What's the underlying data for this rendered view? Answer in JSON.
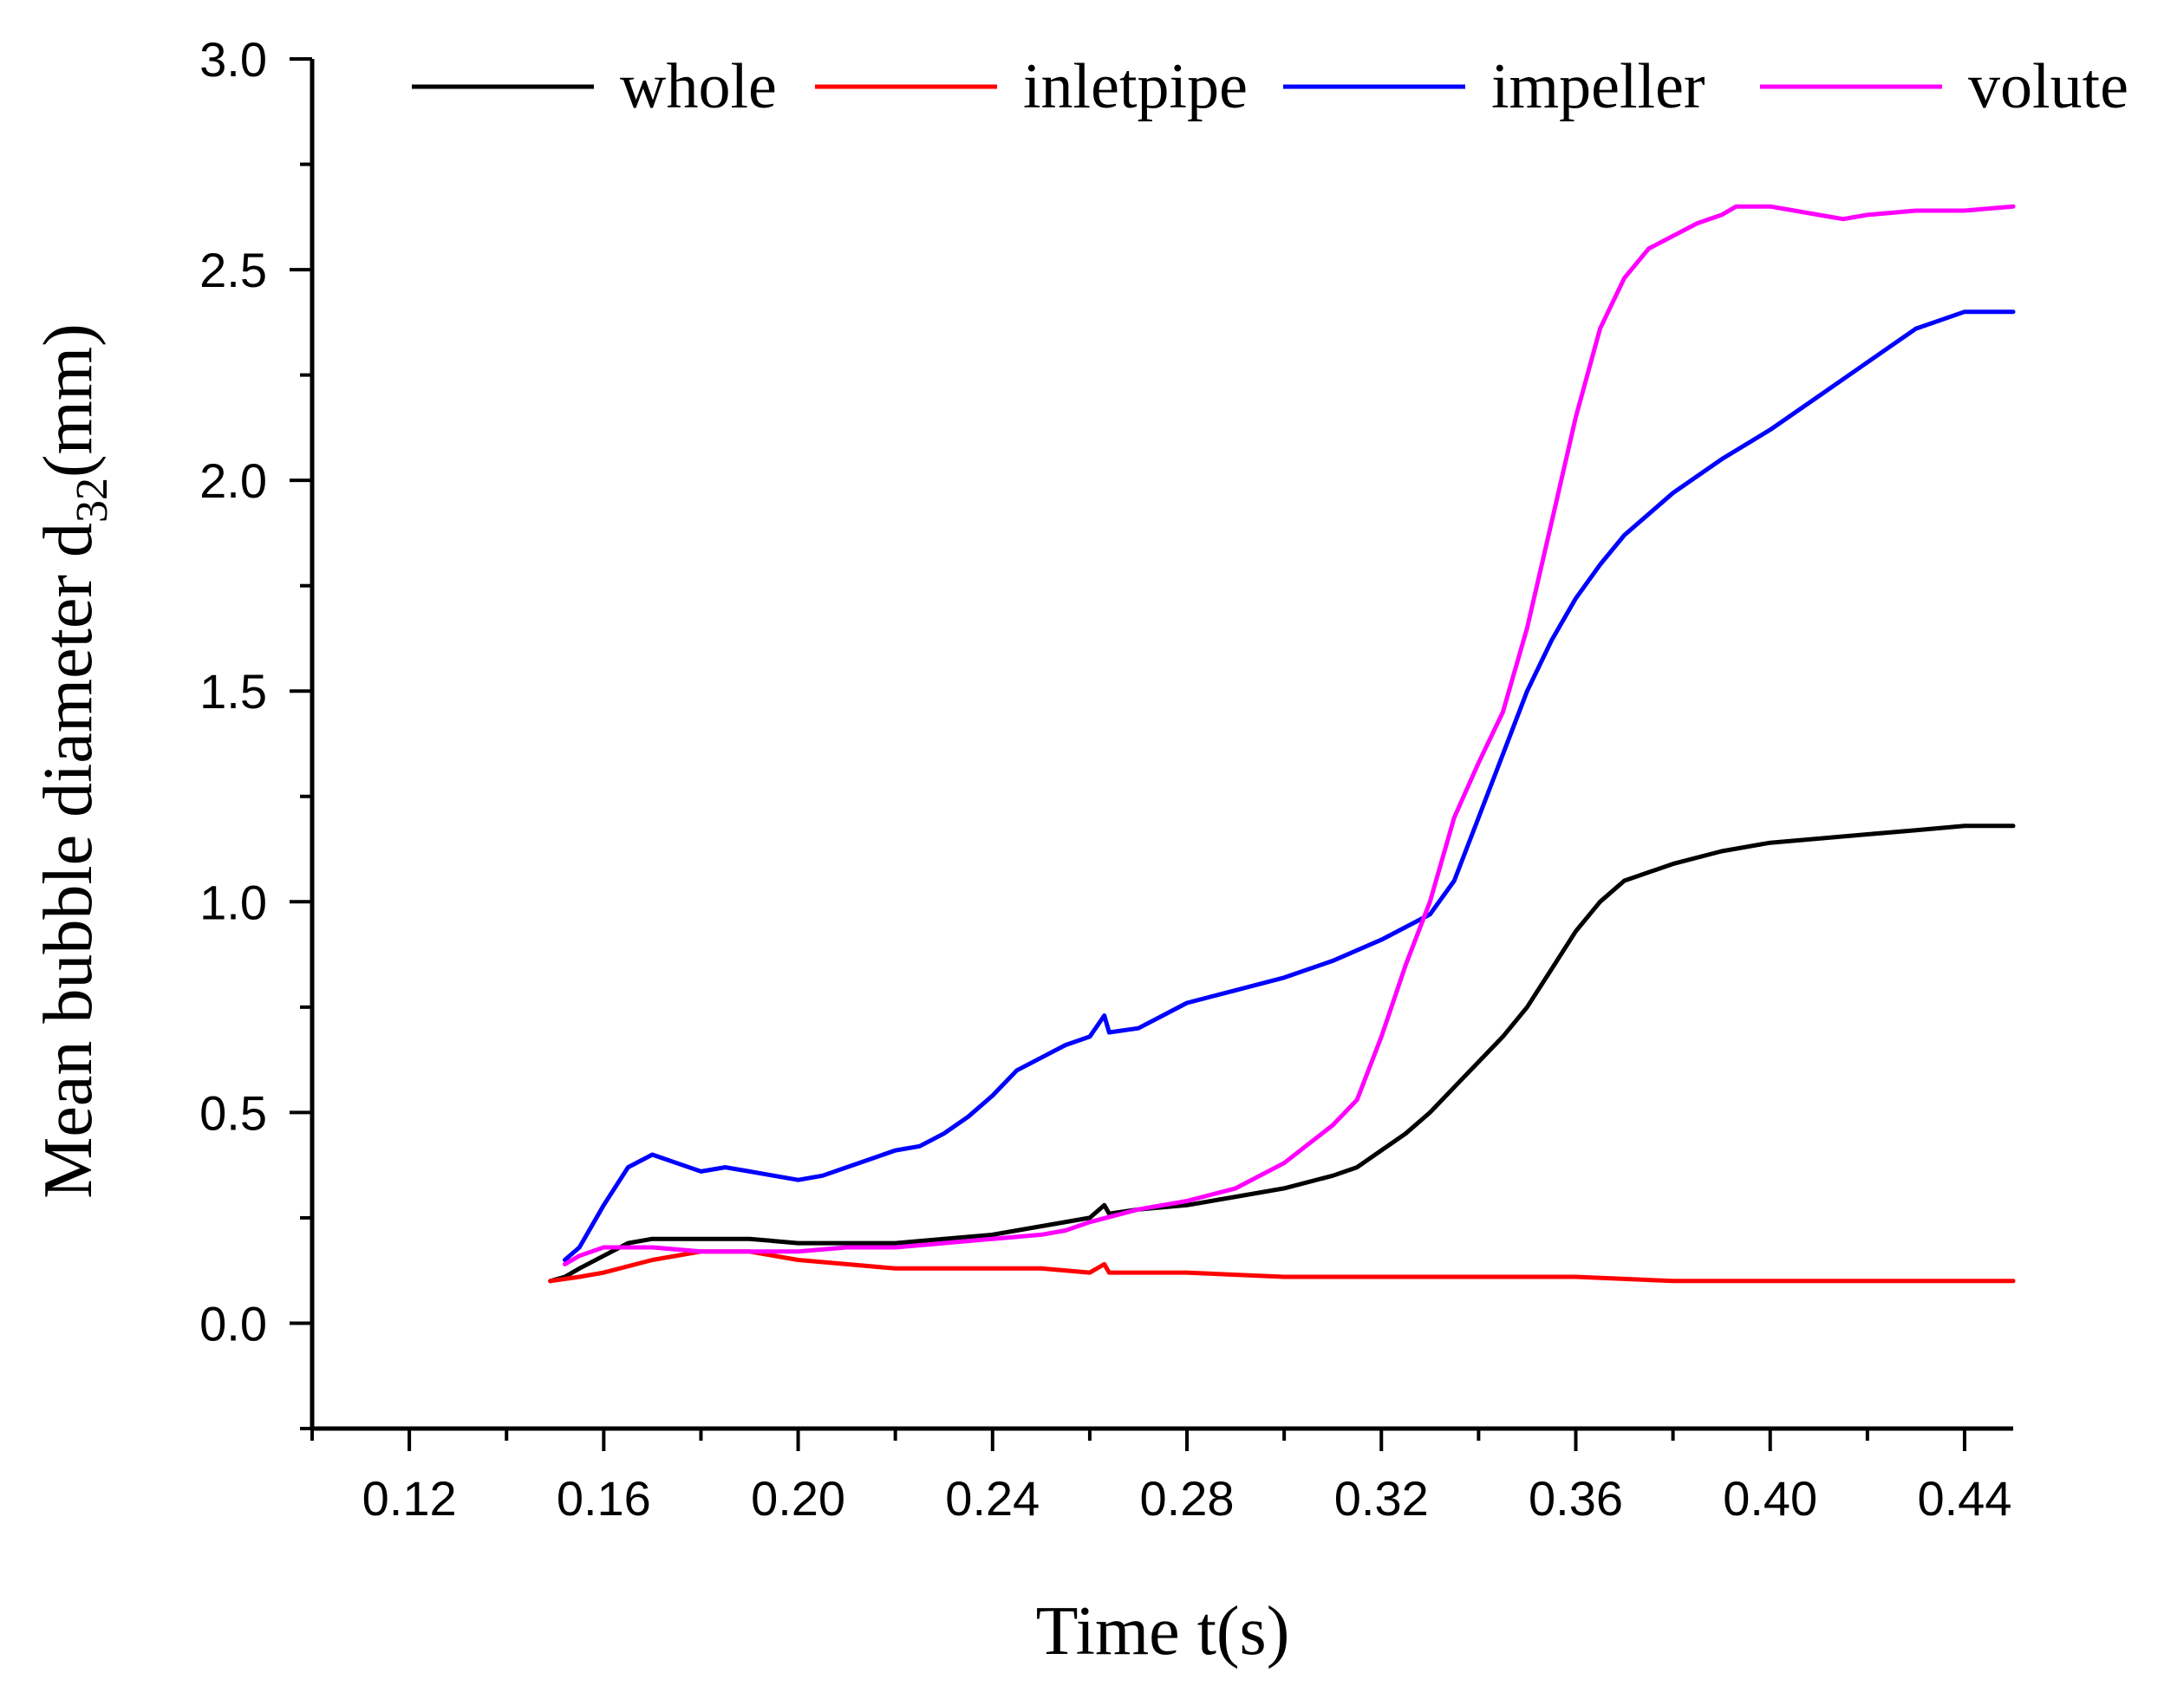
{
  "chart_data": {
    "type": "line",
    "title": "",
    "xlabel": "Time t(s)",
    "ylabel": {
      "main": "Mean bubble diameter d",
      "sub": "32",
      "unit": "(mm)"
    },
    "xlim": [
      0.1,
      0.45
    ],
    "ylim": [
      -0.25,
      3.0
    ],
    "xticks": [
      0.12,
      0.16,
      0.2,
      0.24,
      0.28,
      0.32,
      0.36,
      0.4,
      0.44
    ],
    "xtick_labels": [
      "0.12",
      "0.16",
      "0.20",
      "0.24",
      "0.28",
      "0.32",
      "0.36",
      "0.40",
      "0.44"
    ],
    "yticks": [
      0.0,
      0.5,
      1.0,
      1.5,
      2.0,
      2.5,
      3.0
    ],
    "ytick_labels": [
      "0.0",
      "0.5",
      "1.0",
      "1.5",
      "2.0",
      "2.5",
      "3.0"
    ],
    "grid": false,
    "legend_position": "top",
    "series": [
      {
        "name": "whole",
        "color": "#000000",
        "x": [
          0.149,
          0.152,
          0.155,
          0.16,
          0.165,
          0.17,
          0.18,
          0.19,
          0.2,
          0.21,
          0.22,
          0.23,
          0.24,
          0.25,
          0.26,
          0.263,
          0.264,
          0.27,
          0.28,
          0.29,
          0.3,
          0.31,
          0.315,
          0.32,
          0.325,
          0.33,
          0.335,
          0.34,
          0.345,
          0.35,
          0.355,
          0.36,
          0.365,
          0.37,
          0.375,
          0.38,
          0.39,
          0.4,
          0.41,
          0.42,
          0.43,
          0.44,
          0.45
        ],
        "y": [
          0.1,
          0.11,
          0.13,
          0.16,
          0.19,
          0.2,
          0.2,
          0.2,
          0.19,
          0.19,
          0.19,
          0.2,
          0.21,
          0.23,
          0.25,
          0.28,
          0.26,
          0.27,
          0.28,
          0.3,
          0.32,
          0.35,
          0.37,
          0.41,
          0.45,
          0.5,
          0.56,
          0.62,
          0.68,
          0.75,
          0.84,
          0.93,
          1.0,
          1.05,
          1.07,
          1.09,
          1.12,
          1.14,
          1.15,
          1.16,
          1.17,
          1.18,
          1.18
        ]
      },
      {
        "name": "inletpipe",
        "color": "#ff0000",
        "x": [
          0.149,
          0.155,
          0.16,
          0.17,
          0.18,
          0.19,
          0.2,
          0.21,
          0.22,
          0.23,
          0.24,
          0.25,
          0.26,
          0.263,
          0.264,
          0.27,
          0.28,
          0.3,
          0.32,
          0.34,
          0.36,
          0.38,
          0.4,
          0.42,
          0.45
        ],
        "y": [
          0.1,
          0.11,
          0.12,
          0.15,
          0.17,
          0.17,
          0.15,
          0.14,
          0.13,
          0.13,
          0.13,
          0.13,
          0.12,
          0.14,
          0.12,
          0.12,
          0.12,
          0.11,
          0.11,
          0.11,
          0.11,
          0.1,
          0.1,
          0.1,
          0.1
        ]
      },
      {
        "name": "impeller",
        "color": "#0000ff",
        "x": [
          0.152,
          0.155,
          0.16,
          0.165,
          0.17,
          0.175,
          0.18,
          0.185,
          0.19,
          0.195,
          0.2,
          0.205,
          0.21,
          0.215,
          0.22,
          0.225,
          0.23,
          0.235,
          0.24,
          0.245,
          0.25,
          0.255,
          0.26,
          0.263,
          0.264,
          0.27,
          0.275,
          0.28,
          0.29,
          0.3,
          0.31,
          0.32,
          0.33,
          0.335,
          0.34,
          0.345,
          0.35,
          0.355,
          0.36,
          0.365,
          0.37,
          0.38,
          0.39,
          0.4,
          0.41,
          0.42,
          0.43,
          0.44,
          0.45
        ],
        "y": [
          0.15,
          0.18,
          0.28,
          0.37,
          0.4,
          0.38,
          0.36,
          0.37,
          0.36,
          0.35,
          0.34,
          0.35,
          0.37,
          0.39,
          0.41,
          0.42,
          0.45,
          0.49,
          0.54,
          0.6,
          0.63,
          0.66,
          0.68,
          0.73,
          0.69,
          0.7,
          0.73,
          0.76,
          0.79,
          0.82,
          0.86,
          0.91,
          0.97,
          1.05,
          1.2,
          1.35,
          1.5,
          1.62,
          1.72,
          1.8,
          1.87,
          1.97,
          2.05,
          2.12,
          2.2,
          2.28,
          2.36,
          2.4,
          2.4
        ]
      },
      {
        "name": "volute",
        "color": "#ff00ff",
        "x": [
          0.152,
          0.155,
          0.16,
          0.17,
          0.18,
          0.19,
          0.2,
          0.21,
          0.22,
          0.23,
          0.24,
          0.25,
          0.255,
          0.26,
          0.27,
          0.28,
          0.29,
          0.3,
          0.31,
          0.315,
          0.32,
          0.325,
          0.33,
          0.335,
          0.34,
          0.345,
          0.35,
          0.355,
          0.36,
          0.365,
          0.37,
          0.375,
          0.38,
          0.385,
          0.39,
          0.393,
          0.4,
          0.405,
          0.41,
          0.415,
          0.42,
          0.43,
          0.44,
          0.45
        ],
        "y": [
          0.14,
          0.16,
          0.18,
          0.18,
          0.17,
          0.17,
          0.17,
          0.18,
          0.18,
          0.19,
          0.2,
          0.21,
          0.22,
          0.24,
          0.27,
          0.29,
          0.32,
          0.38,
          0.47,
          0.53,
          0.68,
          0.85,
          1.0,
          1.2,
          1.33,
          1.45,
          1.65,
          1.9,
          2.15,
          2.36,
          2.48,
          2.55,
          2.58,
          2.61,
          2.63,
          2.65,
          2.65,
          2.64,
          2.63,
          2.62,
          2.63,
          2.64,
          2.64,
          2.65
        ]
      }
    ]
  }
}
